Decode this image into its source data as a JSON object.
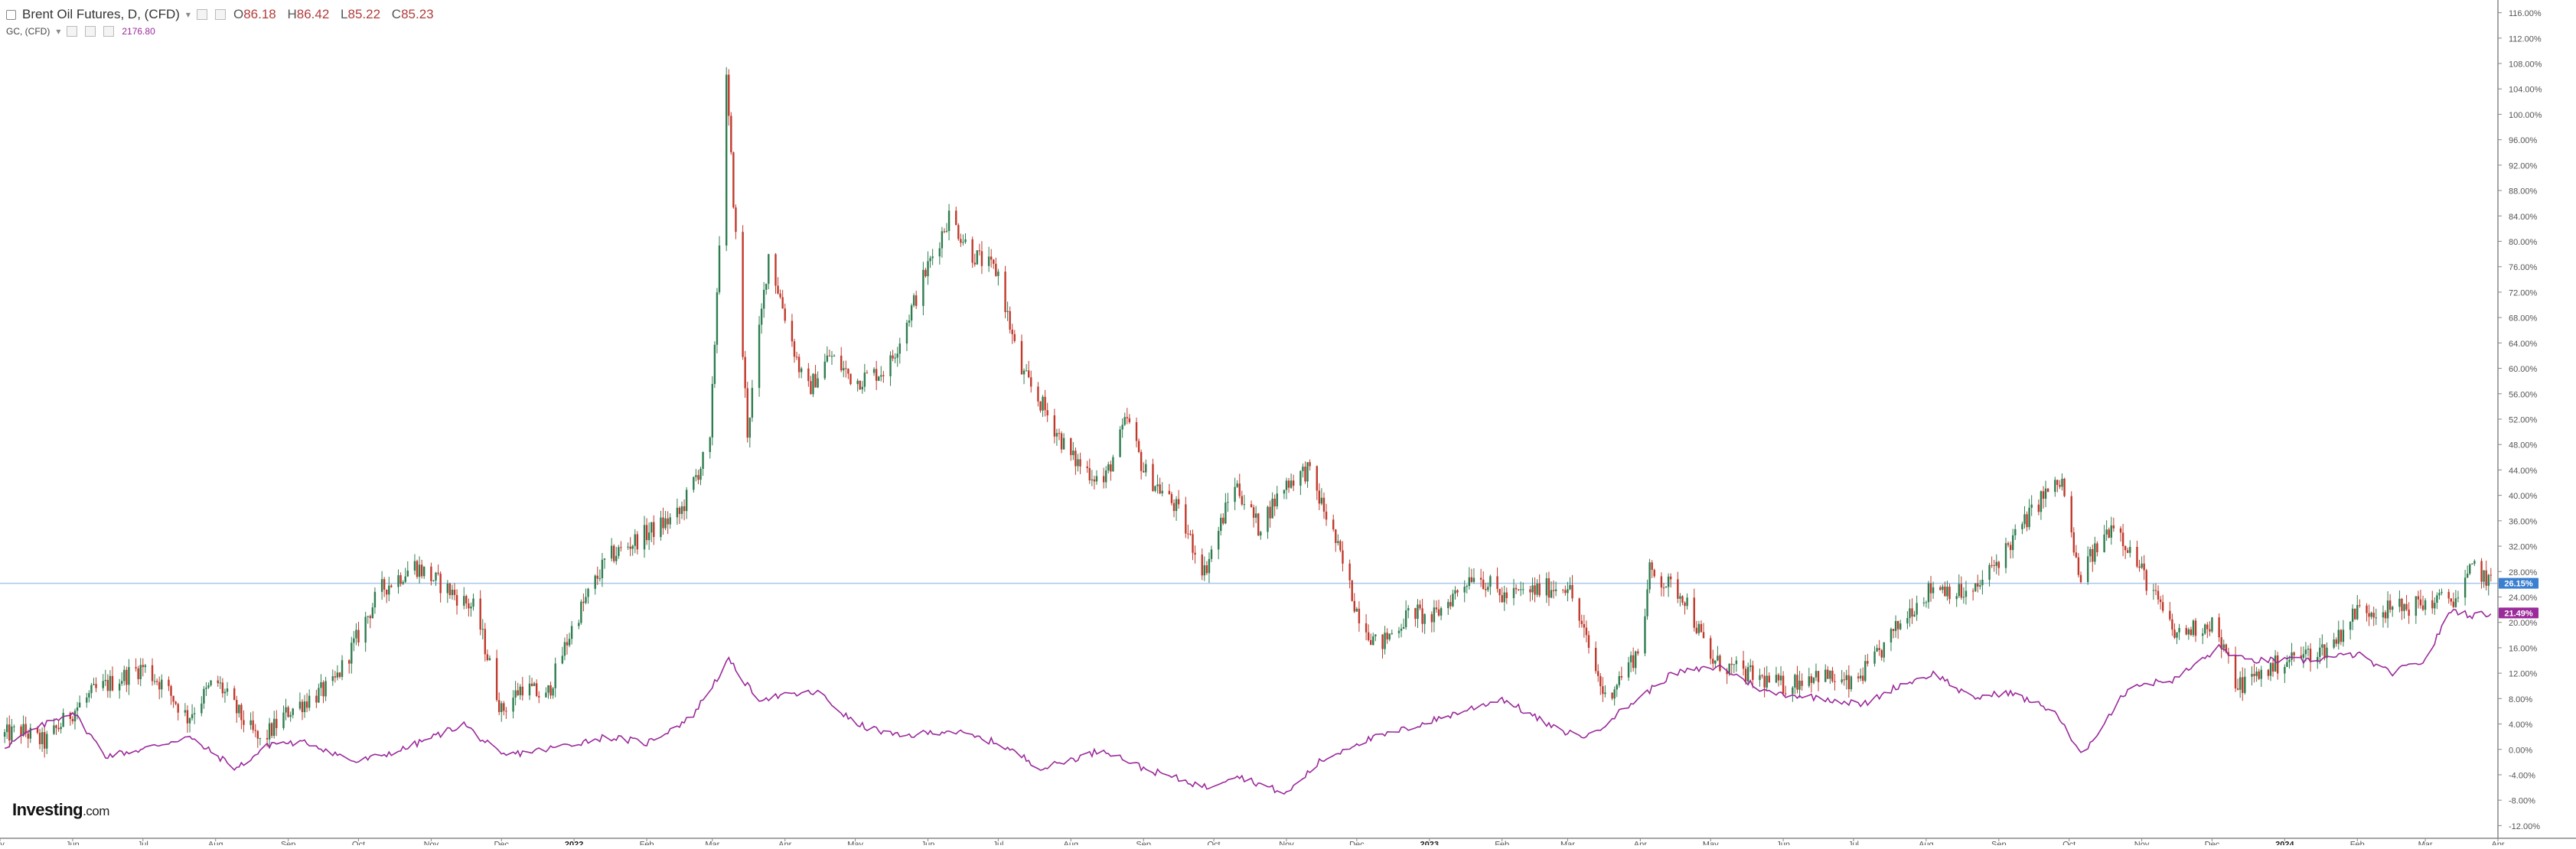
{
  "legend": {
    "symbol_title": "Brent Oil Futures, D, (CFD)",
    "ohlc": {
      "open_label": "O",
      "open": "86.18",
      "high_label": "H",
      "high": "86.42",
      "low_label": "L",
      "low": "85.22",
      "close_label": "C",
      "close": "85.23"
    },
    "compare_title": "GC, (CFD)",
    "compare_value": "2176.80"
  },
  "logo": {
    "brand": "Investing",
    "suffix": ".com"
  },
  "price_badges": {
    "brent": "26.15%",
    "gold": "21.49%"
  },
  "colors": {
    "up_candle": "#2e7d4f",
    "down_candle": "#c0392b",
    "gold_line": "#9b2a9b",
    "brent_marker_line": "#a8c8e8",
    "brent_badge": "#3b7fd0",
    "gold_badge": "#9b2a9b",
    "axis_text": "#555555",
    "grid": "none"
  },
  "chart_data": {
    "type": "line",
    "y_axis_unit": "percent change",
    "ylim": [
      -14,
      118
    ],
    "y_ticks": [
      -12,
      -8,
      -4,
      0,
      4,
      8,
      12,
      16,
      20,
      24,
      28,
      32,
      36,
      40,
      44,
      48,
      52,
      56,
      60,
      64,
      68,
      72,
      76,
      80,
      84,
      88,
      92,
      96,
      100,
      104,
      108,
      112,
      116
    ],
    "y_tick_labels": [
      "-12.00%",
      "-8.00%",
      "-4.00%",
      "0.00%",
      "4.00%",
      "8.00%",
      "12.00%",
      "16.00%",
      "20.00%",
      "24.00%",
      "28.00%",
      "32.00%",
      "36.00%",
      "40.00%",
      "44.00%",
      "48.00%",
      "52.00%",
      "56.00%",
      "60.00%",
      "64.00%",
      "68.00%",
      "72.00%",
      "76.00%",
      "80.00%",
      "84.00%",
      "88.00%",
      "92.00%",
      "96.00%",
      "100.00%",
      "104.00%",
      "108.00%",
      "112.00%",
      "116.00%"
    ],
    "xlim": [
      "2021-05-01",
      "2024-04-01"
    ],
    "x_ticks": [
      {
        "date": "2021-05-01",
        "label": "ay"
      },
      {
        "date": "2021-06-01",
        "label": "Jun"
      },
      {
        "date": "2021-07-01",
        "label": "Jul"
      },
      {
        "date": "2021-08-01",
        "label": "Aug"
      },
      {
        "date": "2021-09-01",
        "label": "Sep"
      },
      {
        "date": "2021-10-01",
        "label": "Oct"
      },
      {
        "date": "2021-11-01",
        "label": "Nov"
      },
      {
        "date": "2021-12-01",
        "label": "Dec"
      },
      {
        "date": "2022-01-01",
        "label": "2022"
      },
      {
        "date": "2022-02-01",
        "label": "Feb"
      },
      {
        "date": "2022-03-01",
        "label": "Mar"
      },
      {
        "date": "2022-04-01",
        "label": "Apr"
      },
      {
        "date": "2022-05-01",
        "label": "May"
      },
      {
        "date": "2022-06-01",
        "label": "Jun"
      },
      {
        "date": "2022-07-01",
        "label": "Jul"
      },
      {
        "date": "2022-08-01",
        "label": "Aug"
      },
      {
        "date": "2022-09-01",
        "label": "Sep"
      },
      {
        "date": "2022-10-01",
        "label": "Oct"
      },
      {
        "date": "2022-11-01",
        "label": "Nov"
      },
      {
        "date": "2022-12-01",
        "label": "Dec"
      },
      {
        "date": "2023-01-01",
        "label": "2023"
      },
      {
        "date": "2023-02-01",
        "label": "Feb"
      },
      {
        "date": "2023-03-01",
        "label": "Mar"
      },
      {
        "date": "2023-04-01",
        "label": "Apr"
      },
      {
        "date": "2023-05-01",
        "label": "May"
      },
      {
        "date": "2023-06-01",
        "label": "Jun"
      },
      {
        "date": "2023-07-01",
        "label": "Jul"
      },
      {
        "date": "2023-08-01",
        "label": "Aug"
      },
      {
        "date": "2023-09-01",
        "label": "Sep"
      },
      {
        "date": "2023-10-01",
        "label": "Oct"
      },
      {
        "date": "2023-11-01",
        "label": "Nov"
      },
      {
        "date": "2023-12-01",
        "label": "Dec"
      },
      {
        "date": "2024-01-01",
        "label": "2024"
      },
      {
        "date": "2024-02-01",
        "label": "Feb"
      },
      {
        "date": "2024-03-01",
        "label": "Mar"
      },
      {
        "date": "2024-04-01",
        "label": "Apr"
      }
    ],
    "series": [
      {
        "name": "Brent Oil Futures, D, (CFD)",
        "style": "candlestick",
        "points": [
          [
            "2021-05-01",
            2
          ],
          [
            "2021-05-10",
            3
          ],
          [
            "2021-05-20",
            1
          ],
          [
            "2021-06-01",
            6
          ],
          [
            "2021-06-10",
            9
          ],
          [
            "2021-06-20",
            11
          ],
          [
            "2021-07-01",
            13
          ],
          [
            "2021-07-10",
            10
          ],
          [
            "2021-07-20",
            5
          ],
          [
            "2021-08-01",
            11
          ],
          [
            "2021-08-10",
            6
          ],
          [
            "2021-08-20",
            1
          ],
          [
            "2021-09-01",
            6
          ],
          [
            "2021-09-10",
            8
          ],
          [
            "2021-09-20",
            10
          ],
          [
            "2021-10-01",
            18
          ],
          [
            "2021-10-10",
            25
          ],
          [
            "2021-10-25",
            29
          ],
          [
            "2021-11-05",
            26
          ],
          [
            "2021-11-20",
            22
          ],
          [
            "2021-12-01",
            6
          ],
          [
            "2021-12-10",
            10
          ],
          [
            "2021-12-20",
            8
          ],
          [
            "2022-01-01",
            20
          ],
          [
            "2022-01-15",
            30
          ],
          [
            "2022-02-01",
            34
          ],
          [
            "2022-02-15",
            37
          ],
          [
            "2022-02-28",
            48
          ],
          [
            "2022-03-07",
            105
          ],
          [
            "2022-03-16",
            50
          ],
          [
            "2022-03-25",
            78
          ],
          [
            "2022-04-10",
            56
          ],
          [
            "2022-04-20",
            62
          ],
          [
            "2022-05-01",
            58
          ],
          [
            "2022-05-15",
            60
          ],
          [
            "2022-06-01",
            76
          ],
          [
            "2022-06-10",
            84
          ],
          [
            "2022-06-20",
            78
          ],
          [
            "2022-07-01",
            75
          ],
          [
            "2022-07-10",
            60
          ],
          [
            "2022-07-20",
            54
          ],
          [
            "2022-08-01",
            46
          ],
          [
            "2022-08-15",
            42
          ],
          [
            "2022-08-25",
            52
          ],
          [
            "2022-09-01",
            44
          ],
          [
            "2022-09-15",
            38
          ],
          [
            "2022-09-27",
            28
          ],
          [
            "2022-10-10",
            42
          ],
          [
            "2022-10-20",
            35
          ],
          [
            "2022-11-01",
            42
          ],
          [
            "2022-11-10",
            44
          ],
          [
            "2022-11-20",
            35
          ],
          [
            "2022-12-01",
            22
          ],
          [
            "2022-12-10",
            16
          ],
          [
            "2022-12-25",
            22
          ],
          [
            "2023-01-01",
            20
          ],
          [
            "2023-01-20",
            28
          ],
          [
            "2023-02-01",
            24
          ],
          [
            "2023-02-15",
            25
          ],
          [
            "2023-03-01",
            26
          ],
          [
            "2023-03-17",
            8
          ],
          [
            "2023-04-01",
            16
          ],
          [
            "2023-04-05",
            28
          ],
          [
            "2023-04-20",
            24
          ],
          [
            "2023-05-01",
            14
          ],
          [
            "2023-05-15",
            12
          ],
          [
            "2023-06-01",
            10
          ],
          [
            "2023-06-15",
            12
          ],
          [
            "2023-06-30",
            10
          ],
          [
            "2023-07-10",
            14
          ],
          [
            "2023-07-25",
            22
          ],
          [
            "2023-08-05",
            26
          ],
          [
            "2023-08-20",
            24
          ],
          [
            "2023-09-05",
            32
          ],
          [
            "2023-09-20",
            40
          ],
          [
            "2023-09-28",
            42
          ],
          [
            "2023-10-05",
            27
          ],
          [
            "2023-10-20",
            36
          ],
          [
            "2023-11-01",
            28
          ],
          [
            "2023-11-15",
            18
          ],
          [
            "2023-12-01",
            20
          ],
          [
            "2023-12-12",
            10
          ],
          [
            "2024-01-01",
            14
          ],
          [
            "2024-01-20",
            16
          ],
          [
            "2024-02-01",
            22
          ],
          [
            "2024-02-15",
            22
          ],
          [
            "2024-03-01",
            23
          ],
          [
            "2024-03-15",
            24
          ],
          [
            "2024-03-22",
            29
          ],
          [
            "2024-03-29",
            26
          ]
        ]
      },
      {
        "name": "GC, (CFD)",
        "style": "line",
        "points": [
          [
            "2021-05-01",
            0
          ],
          [
            "2021-05-15",
            3
          ],
          [
            "2021-06-01",
            6
          ],
          [
            "2021-06-15",
            -1
          ],
          [
            "2021-07-01",
            0
          ],
          [
            "2021-07-20",
            2
          ],
          [
            "2021-08-10",
            -3
          ],
          [
            "2021-08-25",
            1
          ],
          [
            "2021-09-10",
            1
          ],
          [
            "2021-09-30",
            -2
          ],
          [
            "2021-10-20",
            0
          ],
          [
            "2021-11-15",
            4
          ],
          [
            "2021-12-01",
            -1
          ],
          [
            "2021-12-20",
            0
          ],
          [
            "2022-01-15",
            2
          ],
          [
            "2022-02-01",
            1
          ],
          [
            "2022-02-20",
            5
          ],
          [
            "2022-03-08",
            14
          ],
          [
            "2022-03-20",
            8
          ],
          [
            "2022-04-15",
            9
          ],
          [
            "2022-05-01",
            4
          ],
          [
            "2022-05-20",
            2
          ],
          [
            "2022-06-10",
            3
          ],
          [
            "2022-07-01",
            1
          ],
          [
            "2022-07-20",
            -3
          ],
          [
            "2022-08-15",
            0
          ],
          [
            "2022-09-01",
            -3
          ],
          [
            "2022-09-28",
            -6
          ],
          [
            "2022-10-10",
            -4
          ],
          [
            "2022-11-01",
            -7
          ],
          [
            "2022-11-15",
            -2
          ],
          [
            "2022-12-01",
            1
          ],
          [
            "2022-12-20",
            3
          ],
          [
            "2023-01-15",
            6
          ],
          [
            "2023-02-01",
            8
          ],
          [
            "2023-02-25",
            3
          ],
          [
            "2023-03-10",
            2
          ],
          [
            "2023-03-20",
            5
          ],
          [
            "2023-04-15",
            12
          ],
          [
            "2023-05-05",
            13
          ],
          [
            "2023-05-25",
            9
          ],
          [
            "2023-06-20",
            8
          ],
          [
            "2023-07-05",
            7
          ],
          [
            "2023-07-20",
            10
          ],
          [
            "2023-08-05",
            12
          ],
          [
            "2023-08-20",
            8
          ],
          [
            "2023-09-05",
            9
          ],
          [
            "2023-09-25",
            6
          ],
          [
            "2023-10-06",
            -1
          ],
          [
            "2023-10-27",
            10
          ],
          [
            "2023-11-15",
            11
          ],
          [
            "2023-12-04",
            16
          ],
          [
            "2023-12-15",
            14
          ],
          [
            "2024-01-10",
            14
          ],
          [
            "2024-02-01",
            15
          ],
          [
            "2024-02-15",
            12
          ],
          [
            "2024-03-01",
            14
          ],
          [
            "2024-03-12",
            22
          ],
          [
            "2024-03-22",
            21
          ],
          [
            "2024-03-29",
            21.5
          ]
        ]
      }
    ]
  }
}
